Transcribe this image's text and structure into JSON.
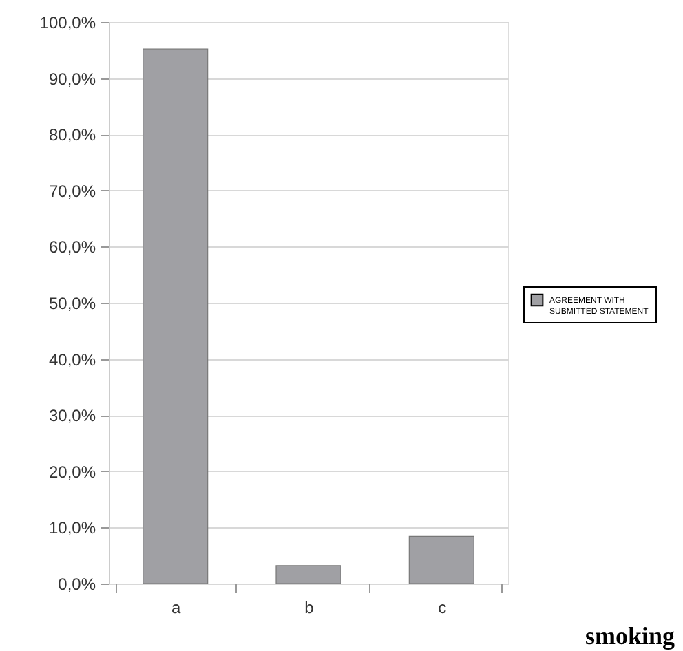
{
  "chart_data": {
    "type": "bar",
    "categories": [
      "a",
      "b",
      "c"
    ],
    "series": [
      {
        "name": "AGREEMENT WITH SUBMITTED STATEMENT",
        "color": "#a0a0a4",
        "values": [
          95.2,
          3.2,
          8.4
        ]
      }
    ],
    "ylim": [
      0,
      100
    ],
    "yticks": [
      {
        "value": 0,
        "label": "0,0%"
      },
      {
        "value": 10,
        "label": "10,0%"
      },
      {
        "value": 20,
        "label": "20,0%"
      },
      {
        "value": 30,
        "label": "30,0%"
      },
      {
        "value": 40,
        "label": "40,0%"
      },
      {
        "value": 50,
        "label": "50,0%"
      },
      {
        "value": 60,
        "label": "60,0%"
      },
      {
        "value": 70,
        "label": "70,0%"
      },
      {
        "value": 80,
        "label": "80,0%"
      },
      {
        "value": 90,
        "label": "90,0%"
      },
      {
        "value": 100,
        "label": "100,0%"
      }
    ],
    "grid": "y",
    "legend": "right",
    "annotations": [
      "smoking"
    ]
  }
}
